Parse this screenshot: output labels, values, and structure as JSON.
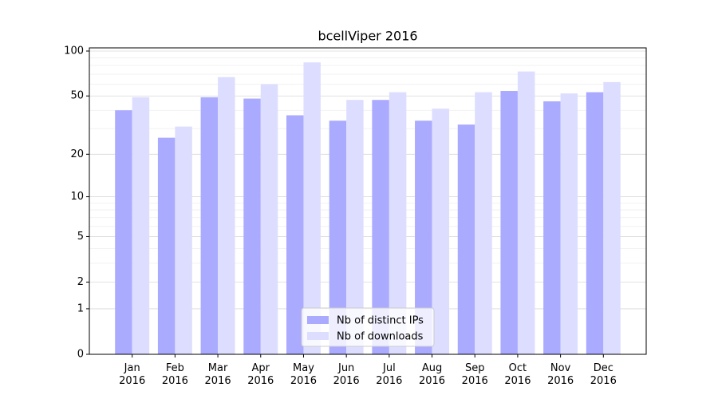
{
  "chart_data": {
    "type": "bar",
    "title": "bcellViper 2016",
    "categories": [
      "Jan\n2016",
      "Feb\n2016",
      "Mar\n2016",
      "Apr\n2016",
      "May\n2016",
      "Jun\n2016",
      "Jul\n2016",
      "Aug\n2016",
      "Sep\n2016",
      "Oct\n2016",
      "Nov\n2016",
      "Dec\n2016"
    ],
    "series": [
      {
        "name": "Nb of distinct IPs",
        "color": "#aaaaff",
        "values": [
          40,
          26,
          49,
          48,
          37,
          34,
          47,
          34,
          32,
          54,
          46,
          53
        ]
      },
      {
        "name": "Nb of downloads",
        "color": "#ddddff",
        "values": [
          49,
          31,
          67,
          60,
          84,
          47,
          53,
          41,
          53,
          73,
          52,
          62
        ]
      }
    ],
    "yscale": "log1p",
    "ylim": [
      0,
      105
    ],
    "yticks": [
      0,
      1,
      2,
      5,
      10,
      20,
      50,
      100
    ],
    "minor_yticks": [
      3,
      4,
      6,
      7,
      8,
      9,
      30,
      40,
      60,
      70,
      80,
      90
    ],
    "grid": true,
    "legend": "lower center"
  }
}
